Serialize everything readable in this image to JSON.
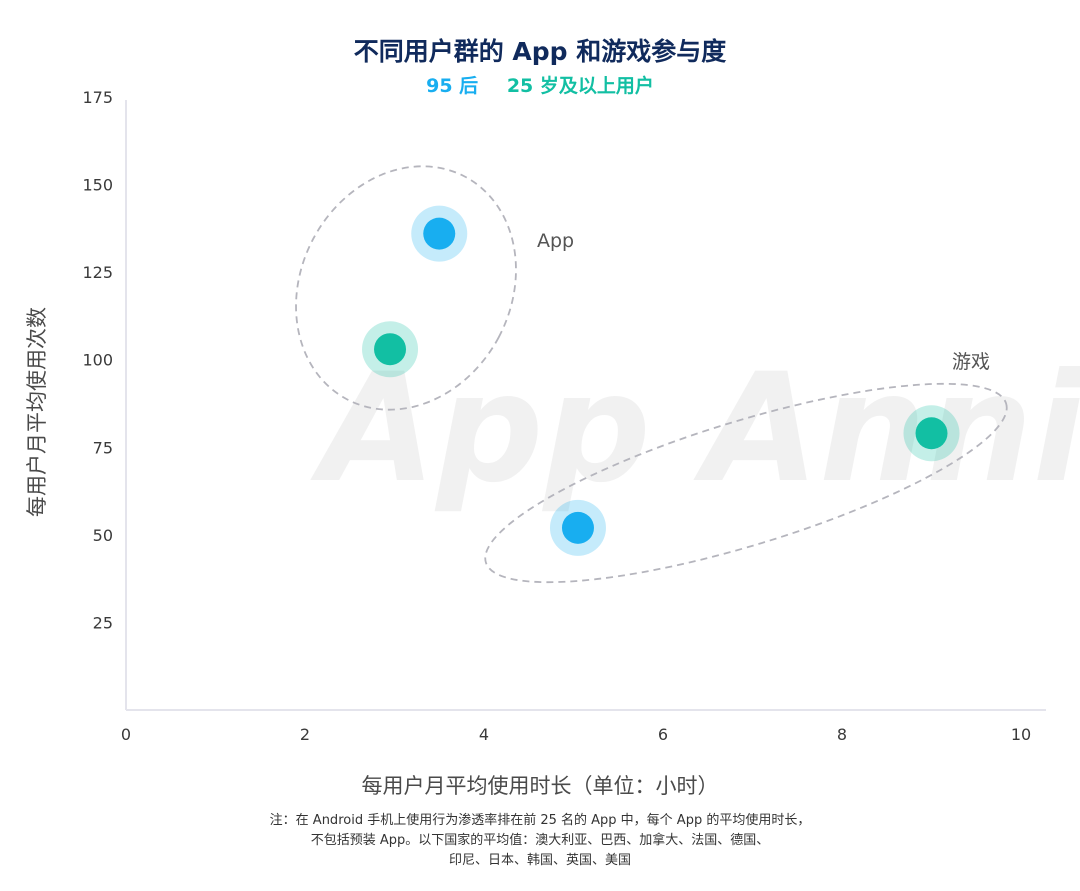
{
  "chart_data": {
    "type": "scatter",
    "title": "不同用户群的 App 和游戏参与度",
    "legend": [
      {
        "name": "95 后",
        "color": "#18aef0"
      },
      {
        "name": "25 岁及以上用户",
        "color": "#12bfa3"
      }
    ],
    "xlabel": "每用户月平均使用时长（单位：小时）",
    "ylabel": "每用户月平均使用次数",
    "xlim": [
      0,
      10
    ],
    "ylim": [
      0,
      175
    ],
    "xticks": [
      "0",
      "2",
      "4",
      "6",
      "8",
      "10"
    ],
    "yticks": [
      "175",
      "150",
      "125",
      "100",
      "75",
      "50",
      "25"
    ],
    "points": [
      {
        "series": "95 后",
        "group": "App",
        "x": 3.5,
        "y": 136
      },
      {
        "series": "25 岁及以上用户",
        "group": "App",
        "x": 2.95,
        "y": 103
      },
      {
        "series": "95 后",
        "group": "游戏",
        "x": 5.05,
        "y": 52
      },
      {
        "series": "25 岁及以上用户",
        "group": "游戏",
        "x": 9.0,
        "y": 79
      }
    ],
    "annotations": [
      "App",
      "游戏"
    ],
    "watermark": "App Annie",
    "note": [
      "注：在 Android 手机上使用行为渗透率排在前 25 名的 App 中，每个 App 的平均使用时长，",
      "不包括预装 App。以下国家的平均值：澳大利亚、巴西、加拿大、法国、德国、",
      "印尼、日本、韩国、英国、美国"
    ]
  },
  "colors": {
    "teen": "#18aef0",
    "adult": "#12bfa3",
    "title": "#102a5c",
    "ellipse": "#b5b5bd",
    "axis": "#e4e4ec"
  }
}
